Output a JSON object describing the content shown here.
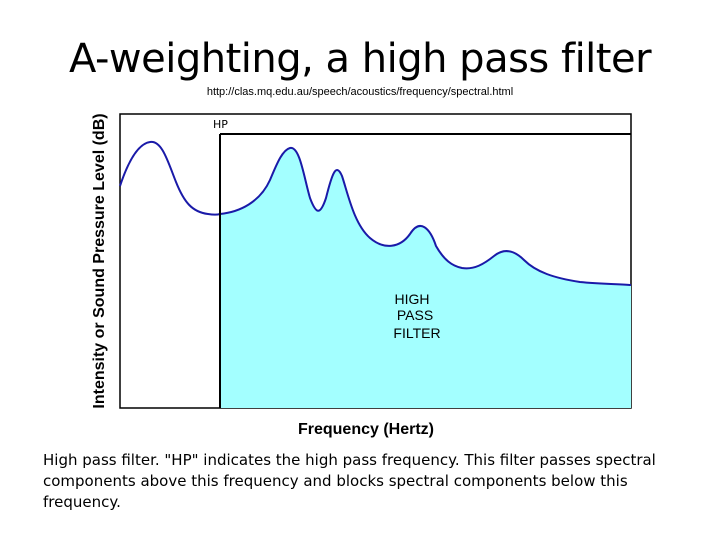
{
  "slide": {
    "title": "A-weighting, a high pass filter",
    "source_url": "http://clas.mq.edu.au/speech/acoustics/frequency/spectral.html",
    "caption": "High pass filter. \"HP\" indicates the high pass frequency. This filter passes spectral components above this frequency and blocks spectral components below this frequency."
  },
  "diagram": {
    "y_axis_label": "Intensity or Sound Pressure Level (dB)",
    "x_axis_label": "Frequency (Hertz)",
    "cutoff_label": "HP",
    "region_label_line1": "HIGH",
    "region_label_line2": "PASS",
    "region_label_line3": "FILTER",
    "colors": {
      "passband_fill": "#a3ffff",
      "spectrum_line": "#1a1aa8",
      "frame": "#000000",
      "background": "#ffffff"
    }
  }
}
